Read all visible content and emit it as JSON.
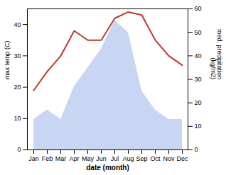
{
  "chart_data": {
    "type": "line",
    "xlabel": "date (month)",
    "ylabel": "max temp (C)",
    "y2label": "med. precipitation\n(kg/m2)",
    "categories": [
      "Jan",
      "Feb",
      "Mar",
      "Apr",
      "May",
      "Jun",
      "Jul",
      "Aug",
      "Sep",
      "Oct",
      "Nov",
      "Dec"
    ],
    "ylim": [
      0,
      45
    ],
    "yticks": [
      0,
      10,
      20,
      30,
      40
    ],
    "y2lim": [
      0,
      60
    ],
    "y2ticks": [
      0,
      10,
      20,
      30,
      40,
      50,
      60
    ],
    "series": [
      {
        "type": "area",
        "axis": "y2",
        "color": "#b0c4f0",
        "values": [
          13,
          17,
          13,
          27,
          35,
          43,
          55,
          50,
          25,
          17,
          13,
          13
        ]
      },
      {
        "type": "line",
        "color": "#c0392b",
        "values": [
          19,
          25,
          30,
          38,
          35,
          35,
          42,
          44,
          43,
          35,
          30,
          27
        ]
      }
    ]
  }
}
